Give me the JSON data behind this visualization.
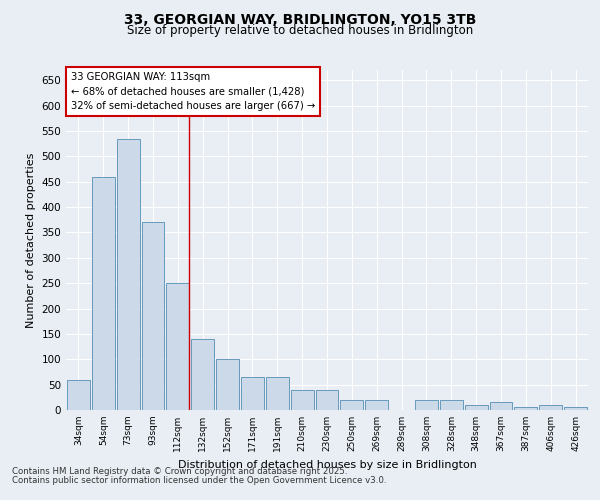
{
  "title1": "33, GEORGIAN WAY, BRIDLINGTON, YO15 3TB",
  "title2": "Size of property relative to detached houses in Bridlington",
  "xlabel": "Distribution of detached houses by size in Bridlington",
  "ylabel": "Number of detached properties",
  "categories": [
    "34sqm",
    "54sqm",
    "73sqm",
    "93sqm",
    "112sqm",
    "132sqm",
    "152sqm",
    "171sqm",
    "191sqm",
    "210sqm",
    "230sqm",
    "250sqm",
    "269sqm",
    "289sqm",
    "308sqm",
    "328sqm",
    "348sqm",
    "367sqm",
    "387sqm",
    "406sqm",
    "426sqm"
  ],
  "values": [
    60,
    460,
    535,
    370,
    250,
    140,
    100,
    65,
    65,
    40,
    40,
    20,
    20,
    0,
    20,
    20,
    10,
    15,
    5,
    10,
    5
  ],
  "bar_color": "#ccd9e8",
  "bar_edge_color": "#6699bb",
  "annotation_box_color": "#ffffff",
  "annotation_border_color": "#cc0000",
  "vline_color": "#cc0000",
  "property_size_bin_index": 4,
  "annotation_title": "33 GEORGIAN WAY: 113sqm",
  "annotation_line1": "← 68% of detached houses are smaller (1,428)",
  "annotation_line2": "32% of semi-detached houses are larger (667) →",
  "footer1": "Contains HM Land Registry data © Crown copyright and database right 2025.",
  "footer2": "Contains public sector information licensed under the Open Government Licence v3.0.",
  "ylim": [
    0,
    670
  ],
  "yticks": [
    0,
    50,
    100,
    150,
    200,
    250,
    300,
    350,
    400,
    450,
    500,
    550,
    600,
    650
  ],
  "bg_color": "#e8eef4",
  "grid_color": "#ffffff"
}
